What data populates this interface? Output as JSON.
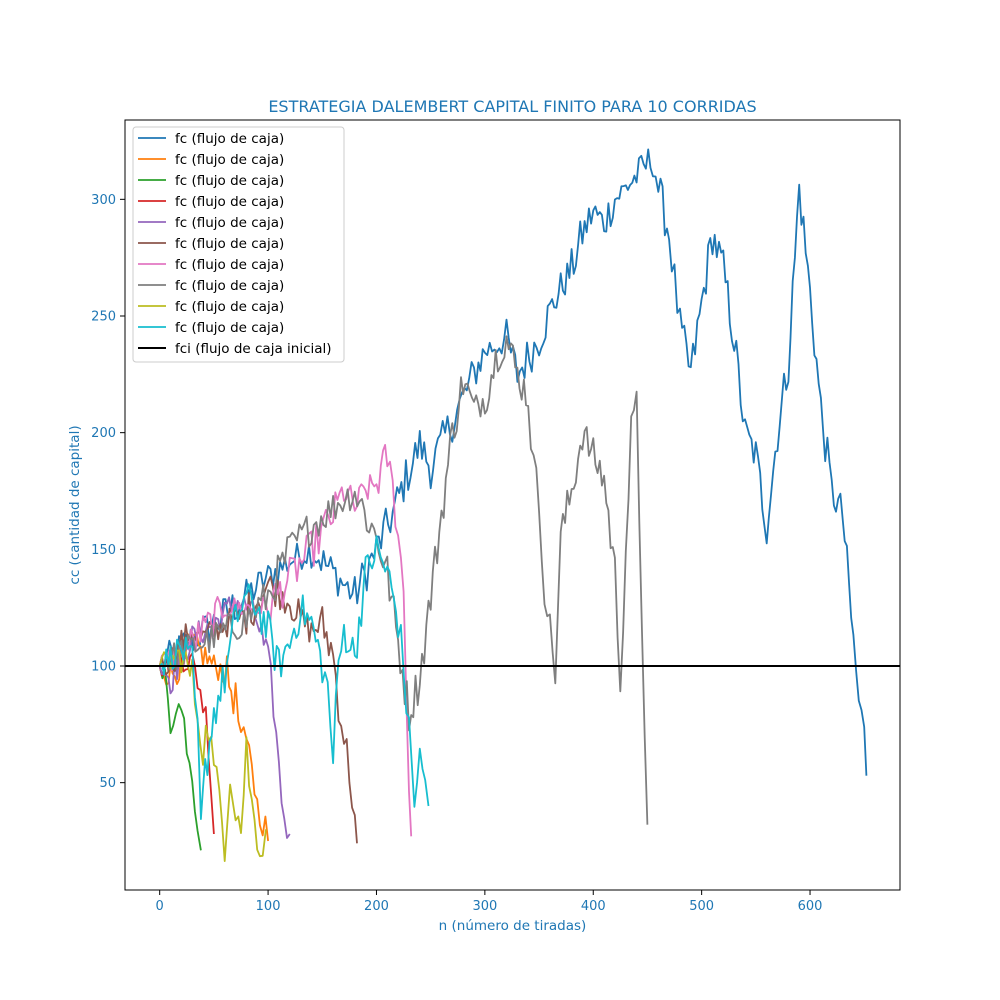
{
  "chart_data": {
    "type": "line",
    "title": "ESTRATEGIA DALEMBERT CAPITAL FINITO PARA 10 CORRIDAS",
    "xlabel": "n (número de tiradas)",
    "ylabel": "cc (cantidad de capital)",
    "xlim": [
      -32,
      683
    ],
    "ylim": [
      4,
      334
    ],
    "xticks": [
      0,
      100,
      200,
      300,
      400,
      500,
      600
    ],
    "yticks": [
      50,
      100,
      150,
      200,
      250,
      300
    ],
    "grid": false,
    "legend_position": "upper-left",
    "reference_line": {
      "name": "fci (flujo de caja inicial)",
      "y": 100,
      "color": "#000000"
    },
    "series": [
      {
        "name": "fc (flujo de caja)",
        "color": "#1f77b4",
        "end_n": 652,
        "points": [
          [
            0,
            100
          ],
          [
            20,
            108
          ],
          [
            50,
            118
          ],
          [
            80,
            130
          ],
          [
            100,
            138
          ],
          [
            120,
            145
          ],
          [
            140,
            150
          ],
          [
            160,
            140
          ],
          [
            180,
            130
          ],
          [
            200,
            150
          ],
          [
            215,
            165
          ],
          [
            225,
            178
          ],
          [
            240,
            195
          ],
          [
            250,
            185
          ],
          [
            270,
            205
          ],
          [
            290,
            225
          ],
          [
            300,
            235
          ],
          [
            320,
            240
          ],
          [
            330,
            225
          ],
          [
            350,
            240
          ],
          [
            360,
            252
          ],
          [
            370,
            262
          ],
          [
            380,
            270
          ],
          [
            390,
            285
          ],
          [
            400,
            295
          ],
          [
            410,
            290
          ],
          [
            420,
            300
          ],
          [
            430,
            305
          ],
          [
            440,
            310
          ],
          [
            455,
            318
          ],
          [
            460,
            305
          ],
          [
            470,
            285
          ],
          [
            475,
            265
          ],
          [
            480,
            245
          ],
          [
            490,
            225
          ],
          [
            500,
            255
          ],
          [
            510,
            285
          ],
          [
            520,
            270
          ],
          [
            530,
            240
          ],
          [
            540,
            200
          ],
          [
            550,
            190
          ],
          [
            560,
            160
          ],
          [
            570,
            200
          ],
          [
            580,
            230
          ],
          [
            590,
            305
          ],
          [
            600,
            260
          ],
          [
            610,
            210
          ],
          [
            620,
            175
          ],
          [
            630,
            165
          ],
          [
            640,
            110
          ],
          [
            645,
            85
          ],
          [
            650,
            70
          ],
          [
            652,
            53
          ]
        ]
      },
      {
        "name": "fc (flujo de caja)",
        "color": "#ff7f0e",
        "end_n": 100,
        "points": [
          [
            0,
            100
          ],
          [
            10,
            96
          ],
          [
            20,
            100
          ],
          [
            30,
            110
          ],
          [
            40,
            105
          ],
          [
            50,
            100
          ],
          [
            60,
            98
          ],
          [
            70,
            85
          ],
          [
            75,
            70
          ],
          [
            80,
            65
          ],
          [
            85,
            60
          ],
          [
            90,
            40
          ],
          [
            95,
            35
          ],
          [
            100,
            25
          ]
        ]
      },
      {
        "name": "fc (flujo de caja)",
        "color": "#2ca02c",
        "end_n": 38,
        "points": [
          [
            0,
            100
          ],
          [
            5,
            92
          ],
          [
            10,
            75
          ],
          [
            15,
            85
          ],
          [
            20,
            80
          ],
          [
            25,
            70
          ],
          [
            30,
            55
          ],
          [
            35,
            35
          ],
          [
            38,
            21
          ]
        ]
      },
      {
        "name": "fc (flujo de caja)",
        "color": "#d62728",
        "end_n": 50,
        "points": [
          [
            0,
            100
          ],
          [
            10,
            103
          ],
          [
            20,
            104
          ],
          [
            30,
            101
          ],
          [
            35,
            95
          ],
          [
            40,
            85
          ],
          [
            45,
            70
          ],
          [
            50,
            28
          ]
        ]
      },
      {
        "name": "fc (flujo de caja)",
        "color": "#9467bd",
        "end_n": 120,
        "points": [
          [
            0,
            100
          ],
          [
            10,
            95
          ],
          [
            20,
            105
          ],
          [
            30,
            112
          ],
          [
            40,
            115
          ],
          [
            50,
            118
          ],
          [
            60,
            122
          ],
          [
            70,
            128
          ],
          [
            80,
            125
          ],
          [
            90,
            120
          ],
          [
            100,
            100
          ],
          [
            105,
            85
          ],
          [
            110,
            55
          ],
          [
            115,
            35
          ],
          [
            120,
            28
          ]
        ]
      },
      {
        "name": "fc (flujo de caja)",
        "color": "#8c564b",
        "end_n": 182,
        "points": [
          [
            0,
            100
          ],
          [
            10,
            102
          ],
          [
            20,
            110
          ],
          [
            30,
            115
          ],
          [
            40,
            112
          ],
          [
            50,
            115
          ],
          [
            60,
            118
          ],
          [
            80,
            122
          ],
          [
            100,
            135
          ],
          [
            120,
            128
          ],
          [
            130,
            120
          ],
          [
            140,
            115
          ],
          [
            150,
            118
          ],
          [
            160,
            105
          ],
          [
            165,
            85
          ],
          [
            170,
            70
          ],
          [
            175,
            55
          ],
          [
            180,
            35
          ],
          [
            182,
            24
          ]
        ]
      },
      {
        "name": "fc (flujo de caja)",
        "color": "#e377c2",
        "end_n": 232,
        "points": [
          [
            0,
            100
          ],
          [
            20,
            105
          ],
          [
            40,
            115
          ],
          [
            60,
            125
          ],
          [
            80,
            125
          ],
          [
            100,
            125
          ],
          [
            120,
            138
          ],
          [
            140,
            150
          ],
          [
            160,
            165
          ],
          [
            170,
            175
          ],
          [
            180,
            168
          ],
          [
            190,
            175
          ],
          [
            200,
            178
          ],
          [
            210,
            190
          ],
          [
            215,
            175
          ],
          [
            220,
            160
          ],
          [
            225,
            130
          ],
          [
            228,
            80
          ],
          [
            232,
            27
          ]
        ]
      },
      {
        "name": "fc (flujo de caja)",
        "color": "#7f7f7f",
        "end_n": 450,
        "points": [
          [
            0,
            100
          ],
          [
            20,
            106
          ],
          [
            50,
            112
          ],
          [
            80,
            120
          ],
          [
            100,
            130
          ],
          [
            120,
            150
          ],
          [
            140,
            160
          ],
          [
            160,
            168
          ],
          [
            180,
            175
          ],
          [
            200,
            155
          ],
          [
            210,
            140
          ],
          [
            220,
            110
          ],
          [
            230,
            80
          ],
          [
            240,
            95
          ],
          [
            250,
            130
          ],
          [
            260,
            165
          ],
          [
            270,
            200
          ],
          [
            280,
            222
          ],
          [
            290,
            210
          ],
          [
            300,
            215
          ],
          [
            310,
            232
          ],
          [
            320,
            240
          ],
          [
            330,
            225
          ],
          [
            340,
            215
          ],
          [
            345,
            185
          ],
          [
            350,
            170
          ],
          [
            355,
            135
          ],
          [
            360,
            115
          ],
          [
            365,
            98
          ],
          [
            370,
            155
          ],
          [
            380,
            175
          ],
          [
            390,
            200
          ],
          [
            400,
            190
          ],
          [
            410,
            180
          ],
          [
            420,
            140
          ],
          [
            425,
            95
          ],
          [
            430,
            150
          ],
          [
            435,
            200
          ],
          [
            440,
            210
          ],
          [
            445,
            120
          ],
          [
            450,
            32
          ]
        ]
      },
      {
        "name": "fc (flujo de caja)",
        "color": "#bcbd22",
        "end_n": 98,
        "points": [
          [
            0,
            100
          ],
          [
            10,
            102
          ],
          [
            20,
            105
          ],
          [
            30,
            95
          ],
          [
            35,
            80
          ],
          [
            40,
            65
          ],
          [
            45,
            75
          ],
          [
            50,
            55
          ],
          [
            55,
            45
          ],
          [
            60,
            25
          ],
          [
            65,
            55
          ],
          [
            70,
            40
          ],
          [
            75,
            30
          ],
          [
            80,
            65
          ],
          [
            85,
            40
          ],
          [
            90,
            25
          ],
          [
            95,
            22
          ],
          [
            98,
            30
          ]
        ]
      },
      {
        "name": "fc (flujo de caja)",
        "color": "#17becf",
        "end_n": 248,
        "points": [
          [
            0,
            100
          ],
          [
            10,
            104
          ],
          [
            20,
            108
          ],
          [
            30,
            100
          ],
          [
            35,
            70
          ],
          [
            38,
            30
          ],
          [
            42,
            55
          ],
          [
            50,
            80
          ],
          [
            60,
            95
          ],
          [
            70,
            120
          ],
          [
            80,
            130
          ],
          [
            90,
            125
          ],
          [
            100,
            115
          ],
          [
            110,
            100
          ],
          [
            120,
            110
          ],
          [
            130,
            125
          ],
          [
            140,
            118
          ],
          [
            150,
            100
          ],
          [
            155,
            90
          ],
          [
            160,
            60
          ],
          [
            165,
            100
          ],
          [
            170,
            115
          ],
          [
            180,
            105
          ],
          [
            190,
            140
          ],
          [
            200,
            150
          ],
          [
            210,
            140
          ],
          [
            220,
            120
          ],
          [
            225,
            100
          ],
          [
            230,
            70
          ],
          [
            235,
            45
          ],
          [
            240,
            60
          ],
          [
            245,
            50
          ],
          [
            248,
            40
          ]
        ]
      }
    ]
  }
}
